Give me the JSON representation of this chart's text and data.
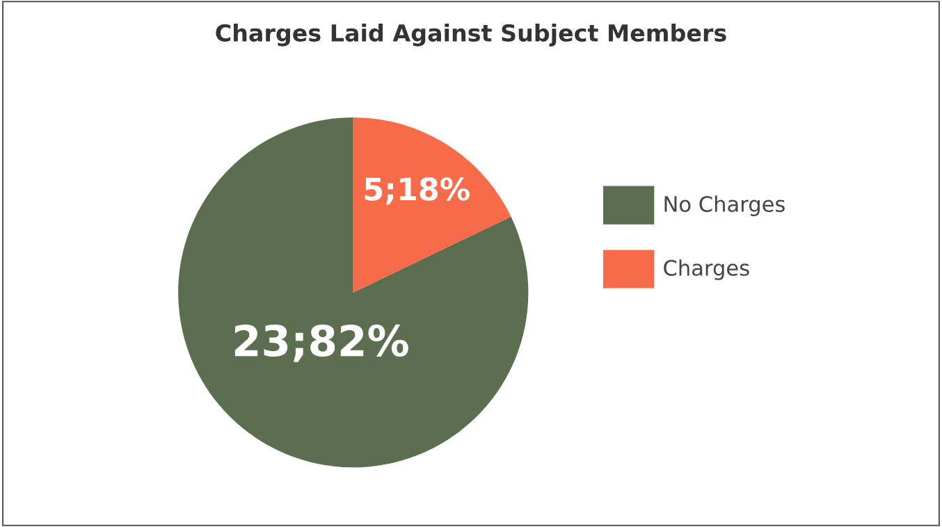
{
  "chart_data": {
    "type": "pie",
    "title": "Charges Laid Against Subject Members",
    "categories": [
      "No Charges",
      "Charges"
    ],
    "values": [
      23,
      5
    ],
    "colors": [
      "#5b6e4f",
      "#f76b4b"
    ],
    "value_labels": [
      "23;82%",
      "5;18%"
    ],
    "legend": "right"
  }
}
